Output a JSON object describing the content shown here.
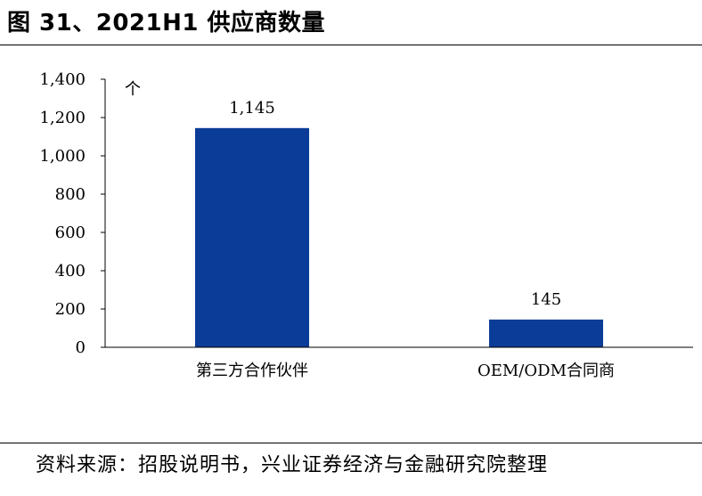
{
  "figure": {
    "title": "图 31、2021H1 供应商数量",
    "source": "资料来源：招股说明书，兴业证券经济与金融研究院整理"
  },
  "chart_data": {
    "type": "bar",
    "title": "",
    "xlabel": "",
    "ylabel": "",
    "unit_label": "个",
    "categories": [
      "第三方合作伙伴",
      "OEM/ODM合同商"
    ],
    "values": [
      1145,
      145
    ],
    "value_labels": [
      "1,145",
      "145"
    ],
    "ylim": [
      0,
      1400
    ],
    "yticks": [
      0,
      200,
      400,
      600,
      800,
      1000,
      1200,
      1400
    ],
    "ytick_labels": [
      "0",
      "200",
      "400",
      "600",
      "800",
      "1,000",
      "1,200",
      "1,400"
    ],
    "grid": false,
    "legend": "none",
    "bar_color": "#0B3C98"
  }
}
